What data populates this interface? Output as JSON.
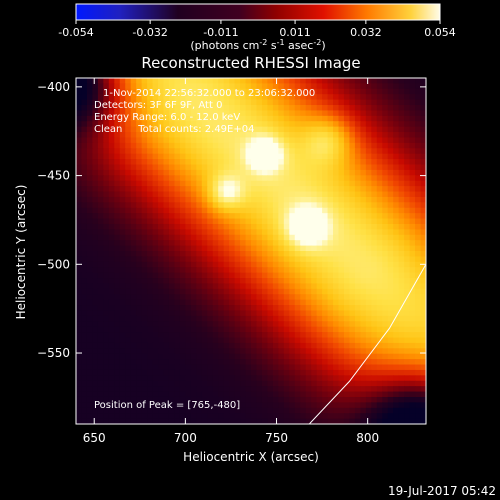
{
  "colorbar": {
    "ticks": [
      "-0.054",
      "-0.032",
      "-0.011",
      "0.011",
      "0.032",
      "0.054"
    ],
    "tick_values": [
      -0.054,
      -0.032,
      -0.011,
      0.011,
      0.032,
      0.054
    ],
    "units_main": "(photons cm",
    "units_sup1": "-2",
    "units_mid": " s",
    "units_sup2": "-1",
    "units_end": " asec",
    "units_sup3": "-2",
    "units_close": ")"
  },
  "chart_data": {
    "type": "heatmap",
    "title": "Reconstructed RHESSI Image",
    "xlabel": "Heliocentric X (arcsec)",
    "ylabel": "Heliocentric Y (arcsec)",
    "xlim": [
      640,
      832
    ],
    "ylim": [
      -590,
      -395
    ],
    "xticks": [
      650,
      700,
      750,
      800
    ],
    "yticks": [
      -400,
      -450,
      -500,
      -550
    ],
    "xtick_labels": [
      "650",
      "700",
      "750",
      "800"
    ],
    "ytick_labels": [
      "−400",
      "−450",
      "−500",
      "−550"
    ],
    "colormap": "hot",
    "color_range": [
      -0.054,
      0.054
    ],
    "info_lines": [
      "1-Nov-2014 22:56:32.000 to 23:06:32.000",
      "Detectors: 3F 6F 9F, Att 0",
      "Energy Range: 6.0 - 12.0 keV",
      "Clean     Total counts: 2.49E+04"
    ],
    "peak_label": "Position of Peak = [765,-480]",
    "peak": [
      765,
      -480
    ],
    "limb_curve": [
      [
        768,
        -590
      ],
      [
        790,
        -566
      ],
      [
        812,
        -536
      ],
      [
        832,
        -500
      ]
    ]
  },
  "timestamp": "19-Jul-2017 05:42",
  "colors": {
    "background": "#000000",
    "text": "#ffffff"
  }
}
